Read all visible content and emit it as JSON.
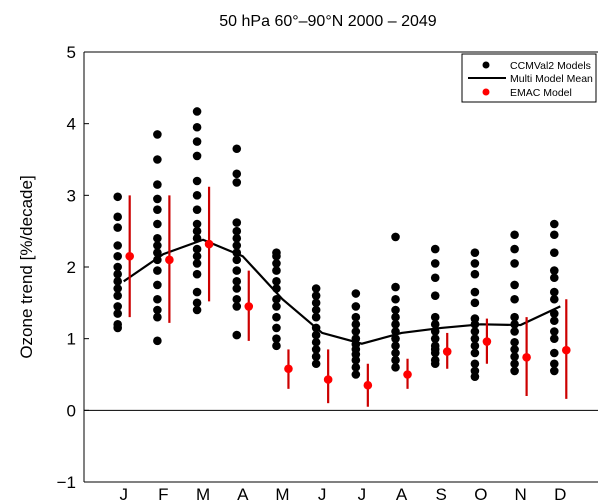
{
  "chart_data": {
    "type": "scatter",
    "title": "50 hPa 60°–90°N 2000 – 2049",
    "ylabel": "Ozone trend [%/decade]",
    "xlabel": "",
    "categories": [
      "J",
      "F",
      "M",
      "A",
      "M",
      "J",
      "J",
      "A",
      "S",
      "O",
      "N",
      "D"
    ],
    "yticks": [
      -1,
      0,
      1,
      2,
      3,
      4,
      5
    ],
    "ylim": [
      -1,
      5
    ],
    "grid": false,
    "legend_position": "top-right",
    "colors": {
      "models": "#000000",
      "mean": "#000000",
      "emac": "#ff0000",
      "emac_bar": "#cc0000"
    },
    "series": [
      {
        "name": "CCMVal2 Models",
        "kind": "points",
        "values": [
          [
            1.15,
            1.2,
            1.35,
            1.45,
            1.6,
            1.7,
            1.8,
            1.9,
            2.0,
            2.15,
            2.3,
            2.55,
            2.7,
            2.98
          ],
          [
            0.97,
            1.3,
            1.4,
            1.55,
            1.75,
            1.95,
            2.1,
            2.2,
            2.3,
            2.4,
            2.6,
            2.8,
            2.95,
            3.15,
            3.5,
            3.85
          ],
          [
            1.4,
            1.5,
            1.65,
            1.9,
            2.05,
            2.15,
            2.25,
            2.4,
            2.5,
            2.6,
            2.8,
            3.0,
            3.2,
            3.55,
            3.75,
            3.95,
            4.17
          ],
          [
            1.05,
            1.45,
            1.55,
            1.7,
            1.8,
            1.95,
            2.1,
            2.2,
            2.3,
            2.4,
            2.5,
            2.62,
            3.18,
            3.3,
            3.65
          ],
          [
            0.9,
            1.0,
            1.15,
            1.3,
            1.45,
            1.55,
            1.7,
            1.8,
            1.95,
            2.05,
            2.15,
            2.2
          ],
          [
            0.65,
            0.75,
            0.85,
            0.95,
            1.05,
            1.15,
            1.3,
            1.4,
            1.5,
            1.6,
            1.7
          ],
          [
            0.5,
            0.6,
            0.7,
            0.78,
            0.85,
            0.92,
            1.0,
            1.1,
            1.2,
            1.3,
            1.45,
            1.63
          ],
          [
            0.6,
            0.7,
            0.8,
            0.9,
            1.0,
            1.1,
            1.2,
            1.3,
            1.4,
            1.55,
            1.72,
            2.42
          ],
          [
            0.65,
            0.7,
            0.8,
            0.85,
            0.9,
            1.0,
            1.1,
            1.2,
            1.3,
            1.6,
            1.85,
            2.05,
            2.25
          ],
          [
            0.47,
            0.55,
            0.65,
            0.8,
            0.9,
            1.0,
            1.1,
            1.2,
            1.28,
            1.5,
            1.65,
            1.9,
            2.05,
            2.2
          ],
          [
            0.55,
            0.65,
            0.75,
            0.85,
            0.95,
            1.1,
            1.2,
            1.3,
            1.55,
            1.75,
            2.05,
            2.25,
            2.45
          ],
          [
            0.55,
            0.65,
            0.8,
            1.0,
            1.1,
            1.25,
            1.35,
            1.55,
            1.65,
            1.85,
            1.95,
            2.2,
            2.45,
            2.6
          ]
        ]
      },
      {
        "name": "Multi Model Mean",
        "kind": "line",
        "values": [
          1.8,
          2.18,
          2.38,
          2.15,
          1.55,
          1.08,
          0.93,
          1.08,
          1.15,
          1.2,
          1.19,
          1.45
        ]
      },
      {
        "name": "EMAC Model",
        "kind": "points_with_errorbars",
        "values": [
          2.15,
          2.1,
          2.32,
          1.45,
          0.58,
          0.43,
          0.35,
          0.5,
          0.82,
          0.96,
          0.74,
          0.84
        ],
        "lower": [
          1.3,
          1.22,
          1.52,
          0.97,
          0.3,
          0.1,
          0.05,
          0.3,
          0.58,
          0.65,
          0.2,
          0.16
        ],
        "upper": [
          3.0,
          3.0,
          3.12,
          1.95,
          0.85,
          0.85,
          0.65,
          0.72,
          1.08,
          1.28,
          1.3,
          1.55
        ]
      }
    ]
  }
}
